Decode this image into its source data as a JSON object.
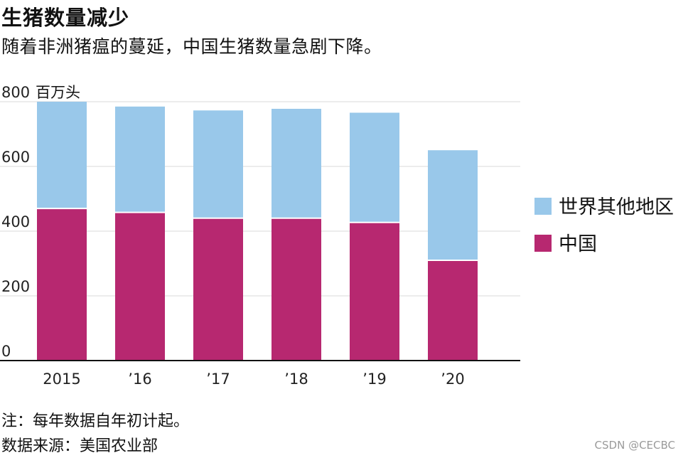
{
  "title": "生猪数量减少",
  "subtitle": "随着非洲猪瘟的蔓延，中国生猪数量急剧下降。",
  "note": "注：每年数据自年初计起。",
  "source": "数据来源：美国农业部",
  "watermark": "CSDN @CECBC",
  "chart_data": {
    "type": "bar",
    "stacked": true,
    "categories": [
      "2015",
      "’16",
      "’17",
      "’18",
      "’19",
      "’20"
    ],
    "ylabel": "百万头",
    "ylim": [
      0,
      800
    ],
    "yticks": [
      0,
      200,
      400,
      600,
      800
    ],
    "grid": true,
    "legend_position": "right",
    "series": [
      {
        "name": "中国",
        "color": "#b72870",
        "values": [
          470,
          458,
          440,
          440,
          427,
          310
        ]
      },
      {
        "name": "世界其他地区",
        "color": "#99c8ea",
        "values": [
          330,
          327,
          333,
          338,
          339,
          340
        ]
      }
    ]
  }
}
